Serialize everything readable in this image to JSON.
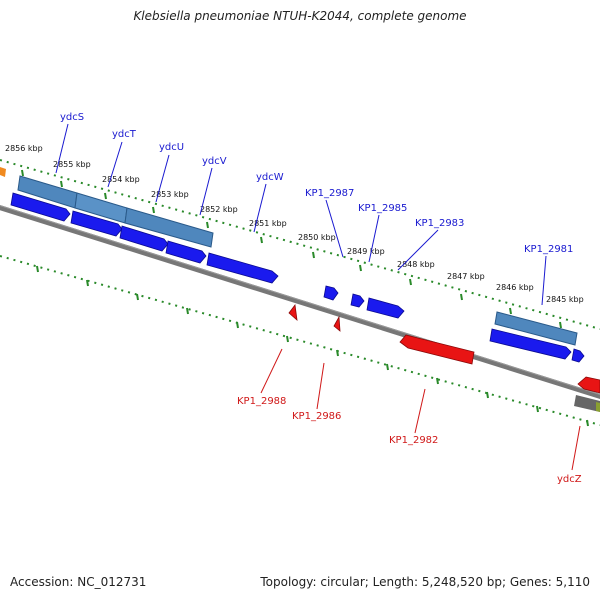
{
  "title": "Klebsiella pneumoniae NTUH-K2044, complete genome",
  "footer": {
    "accession": "Accession: NC_012731",
    "summary": "Topology: circular; Length: 5,248,520 bp; Genes: 5,110"
  },
  "kbp_labels": [
    "2856 kbp",
    "2855 kbp",
    "2854 kbp",
    "2853 kbp",
    "2852 kbp",
    "2851 kbp",
    "2850 kbp",
    "2849 kbp",
    "2848 kbp",
    "2847 kbp",
    "2846 kbp",
    "2845 kbp"
  ],
  "forward_gene_labels": [
    "ydcS",
    "ydcT",
    "ydcU",
    "ydcV",
    "ydcW",
    "KP1_2987",
    "KP1_2985",
    "KP1_2983",
    "KP1_2981"
  ],
  "reverse_gene_labels": [
    "KP1_2988",
    "KP1_2986",
    "KP1_2982",
    "ydcZ"
  ],
  "colors": {
    "forward_cds": "#1a1aee",
    "reverse_cds": "#e81414",
    "forward_label": "#1a1ad0",
    "reverse_label": "#d01818",
    "backbone": "#777777",
    "tick": "#2a8a2a",
    "gene_bar": "#4f87bd"
  }
}
